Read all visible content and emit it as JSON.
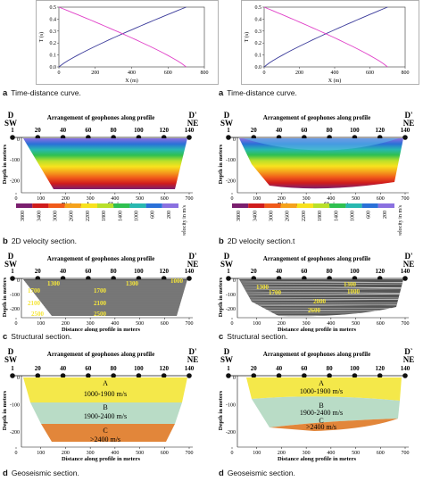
{
  "columns": [
    {
      "id": "left",
      "time_distance": {
        "caption_letter": "a",
        "caption_text": "Time-distance curve.",
        "ylabel": "T (s)",
        "xlabel": "X (m)",
        "yticks": [
          "0.0",
          "0.1",
          "0.2",
          "0.3",
          "0.4",
          "0.5"
        ],
        "xticks": [
          "0",
          "200",
          "400",
          "600",
          "800"
        ]
      },
      "velocity": {
        "caption_letter": "b",
        "caption_text": "2D velocity section.",
        "top_left": "D",
        "top_left2": "SW",
        "top_right": "D'",
        "top_right2": "NE",
        "header": "Arrangement of geophones along profile",
        "geophones": [
          "1",
          "20",
          "40",
          "60",
          "80",
          "100",
          "120",
          "140"
        ],
        "ylabel": "Depth in meters",
        "xlabel": "Distance along profile in meters",
        "yticks": [
          "0",
          "-100",
          "-200"
        ],
        "xticks": [
          "0",
          "100",
          "200",
          "300",
          "400",
          "500",
          "600",
          "700"
        ],
        "scale_values": [
          "3800",
          "3400",
          "3000",
          "2600",
          "2200",
          "1800",
          "1400",
          "1000",
          "600",
          "200"
        ],
        "scale_unit": "velocity in m/s"
      },
      "structural": {
        "caption_letter": "c",
        "caption_text": "Structural section.",
        "top_left": "D",
        "top_left2": "SW",
        "top_right": "D'",
        "top_right2": "NE",
        "header": "Arrangement of geophones along profile",
        "geophones": [
          "1",
          "20",
          "40",
          "60",
          "80",
          "100",
          "120",
          "140"
        ],
        "ylabel": "Depth in meters",
        "xlabel": "Distance along profile in meters",
        "yticks": [
          "0",
          "-100",
          "-200"
        ],
        "xticks": [
          "0",
          "100",
          "200",
          "300",
          "400",
          "500",
          "600",
          "700"
        ],
        "labels": [
          "1700",
          "2100",
          "2500",
          "1700",
          "2100",
          "2500",
          "1300",
          "1300",
          "1000"
        ]
      },
      "geoseismic": {
        "caption_letter": "d",
        "caption_text": "Geoseismic section.",
        "top_left": "D",
        "top_left2": "SW",
        "top_right": "D'",
        "top_right2": "NE",
        "header": "Arrangement of geophones along profile",
        "geophones": [
          "1",
          "20",
          "40",
          "60",
          "80",
          "100",
          "120",
          "140"
        ],
        "ylabel": "Depth in meters",
        "xlabel": "Distance along profile in meters",
        "yticks": [
          "0",
          "-100",
          "-200"
        ],
        "xticks": [
          "0",
          "100",
          "200",
          "300",
          "400",
          "500",
          "600",
          "700"
        ],
        "layers": [
          {
            "letter": "A",
            "velocity": "1000-1900 m/s",
            "color": "#f4e84a"
          },
          {
            "letter": "B",
            "velocity": "1900-2400 m/s",
            "color": "#b9dcc6"
          },
          {
            "letter": "C",
            "velocity": ">2400 m/s",
            "color": "#e2863a"
          }
        ]
      }
    },
    {
      "id": "right",
      "time_distance": {
        "caption_letter": "a",
        "caption_text": "Time-distance curve.",
        "ylabel": "T (s)",
        "xlabel": "X (m)",
        "yticks": [
          "0.0",
          "0.1",
          "0.2",
          "0.3",
          "0.4",
          "0.5"
        ],
        "xticks": [
          "0",
          "200",
          "400",
          "600",
          "800"
        ]
      },
      "velocity": {
        "caption_letter": "b",
        "caption_text": "2D velocity section.t",
        "top_left": "D",
        "top_left2": "SW",
        "top_right": "D'",
        "top_right2": "NE",
        "header": "Arrangement of geophones along profile",
        "geophones": [
          "1",
          "20",
          "40",
          "60",
          "80",
          "100",
          "120",
          "140"
        ],
        "ylabel": "Depth in meters",
        "xlabel": "Distance along profile in meters",
        "yticks": [
          "0",
          "-100",
          "-200"
        ],
        "xticks": [
          "0",
          "100",
          "200",
          "300",
          "400",
          "500",
          "600",
          "700"
        ],
        "scale_values": [
          "3800",
          "3400",
          "3000",
          "2600",
          "2200",
          "1800",
          "1400",
          "1000",
          "600",
          "200"
        ],
        "scale_unit": "velocity in m/s"
      },
      "structural": {
        "caption_letter": "c",
        "caption_text": "Structural section.",
        "top_left": "D",
        "top_left2": "SW",
        "top_right": "D'",
        "top_right2": "NE",
        "header": "Arrangement of geophones along profile",
        "geophones": [
          "1",
          "20",
          "40",
          "60",
          "80",
          "100",
          "120",
          "140"
        ],
        "ylabel": "Depth in meters",
        "xlabel": "Distance along profile in meters",
        "yticks": [
          "0",
          "-100",
          "-200"
        ],
        "xticks": [
          "0",
          "100",
          "200",
          "300",
          "400",
          "500",
          "600",
          "700"
        ],
        "labels": [
          "1300",
          "1700",
          "2000",
          "2600",
          "1000",
          "1300"
        ]
      },
      "geoseismic": {
        "caption_letter": "d",
        "caption_text": "Geoseismic section.",
        "top_left": "D",
        "top_left2": "SW",
        "top_right": "D`",
        "top_right2": "NE",
        "header": "Arrangement of geophones along profile",
        "geophones": [
          "1",
          "20",
          "40",
          "60",
          "80",
          "100",
          "120",
          "140"
        ],
        "ylabel": "Depth in meters",
        "xlabel": "Distance along profile in meters",
        "yticks": [
          "0",
          "-100",
          "-200"
        ],
        "xticks": [
          "0",
          "100",
          "200",
          "300",
          "400",
          "500",
          "600",
          "700"
        ],
        "layers": [
          {
            "letter": "A",
            "velocity": "1000-1900 m/s",
            "color": "#f4e84a"
          },
          {
            "letter": "B",
            "velocity": "1900-2400 m/s",
            "color": "#b9dcc6"
          },
          {
            "letter": "C",
            "velocity": ">2400 m/s",
            "color": "#e2863a"
          }
        ]
      }
    }
  ],
  "curve_colors": {
    "forward": "#3a3a9a",
    "reverse": "#e040c8"
  },
  "velocity_gradient": [
    "#7a1f6e",
    "#d01c1c",
    "#f05a1a",
    "#f5a21c",
    "#f8e21e",
    "#b8e02a",
    "#2fc050",
    "#28b8b0",
    "#2a70d8",
    "#8a70e0"
  ]
}
